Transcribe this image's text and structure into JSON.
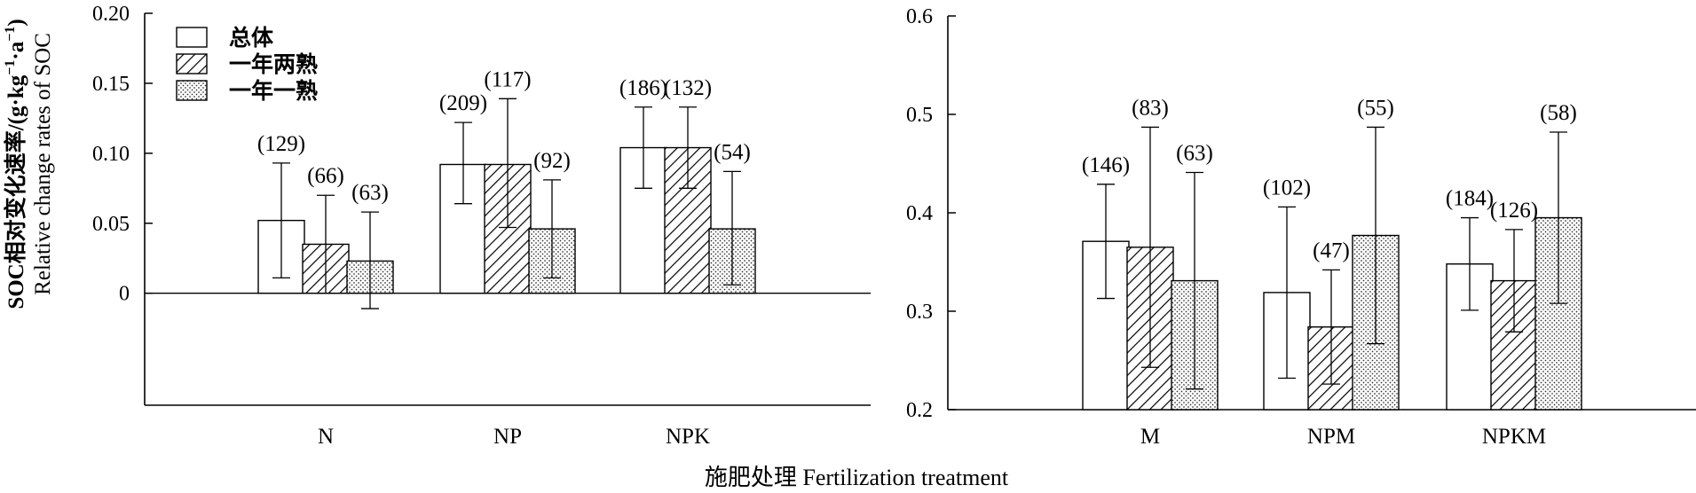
{
  "chart_data": [
    {
      "type": "bar",
      "categories": [
        "N",
        "NP",
        "NPK"
      ],
      "ylabel_cn": "SOC相对变化速率/(g·kg",
      "ylabel_cn_unit": "·a",
      "ylabel_cn_end": ")",
      "ylabel_sup1": "−1",
      "ylabel_sup2": "−1",
      "ylabel_en": "Relative change rates of SOC",
      "ylim": [
        -0.08,
        0.2
      ],
      "yticks": [
        0,
        0.05,
        0.1,
        0.15,
        0.2
      ],
      "ytick_labels": [
        "0",
        "0.05",
        "0.10",
        "0.15",
        "0.20"
      ],
      "legend": [
        "总体",
        "一年两熟",
        "一年一熟"
      ],
      "legend_position": "top-left",
      "series": [
        {
          "name": "总体",
          "pattern": "none",
          "values": [
            0.052,
            0.092,
            0.104
          ],
          "err_low": [
            0.011,
            0.064,
            0.075
          ],
          "err_high": [
            0.093,
            0.122,
            0.133
          ],
          "n_labels": [
            "(129)",
            "(209)",
            "(186)"
          ]
        },
        {
          "name": "一年两熟",
          "pattern": "hatch",
          "values": [
            0.035,
            0.092,
            0.104
          ],
          "err_low": [
            0.0,
            0.047,
            0.075
          ],
          "err_high": [
            0.07,
            0.139,
            0.133
          ],
          "n_labels": [
            "(66)",
            "(117)",
            "(132)"
          ]
        },
        {
          "name": "一年一熟",
          "pattern": "dots",
          "values": [
            0.023,
            0.046,
            0.046
          ],
          "err_low": [
            -0.011,
            0.011,
            0.006
          ],
          "err_high": [
            0.058,
            0.081,
            0.087
          ],
          "n_labels": [
            "(63)",
            "(92)",
            "(54)"
          ]
        }
      ]
    },
    {
      "type": "bar",
      "categories": [
        "M",
        "NPM",
        "NPKM"
      ],
      "ylim": [
        0.2,
        0.6
      ],
      "yticks": [
        0.2,
        0.3,
        0.4,
        0.5,
        0.6
      ],
      "ytick_labels": [
        "0.2",
        "0.3",
        "0.4",
        "0.5",
        "0.6"
      ],
      "series": [
        {
          "name": "总体",
          "pattern": "none",
          "values": [
            0.371,
            0.319,
            0.348
          ],
          "err_low": [
            0.313,
            0.232,
            0.301
          ],
          "err_high": [
            0.429,
            0.406,
            0.395
          ],
          "n_labels": [
            "(146)",
            "(102)",
            "(184)"
          ]
        },
        {
          "name": "一年两熟",
          "pattern": "hatch",
          "values": [
            0.365,
            0.284,
            0.331
          ],
          "err_low": [
            0.243,
            0.226,
            0.279
          ],
          "err_high": [
            0.487,
            0.342,
            0.383
          ],
          "n_labels": [
            "(83)",
            "(47)",
            "(126)"
          ]
        },
        {
          "name": "一年一熟",
          "pattern": "dots",
          "values": [
            0.331,
            0.377,
            0.395
          ],
          "err_low": [
            0.221,
            0.267,
            0.308
          ],
          "err_high": [
            0.441,
            0.487,
            0.482
          ],
          "n_labels": [
            "(63)",
            "(55)",
            "(58)"
          ]
        }
      ]
    }
  ],
  "xlabel": "施肥处理 Fertilization treatment"
}
